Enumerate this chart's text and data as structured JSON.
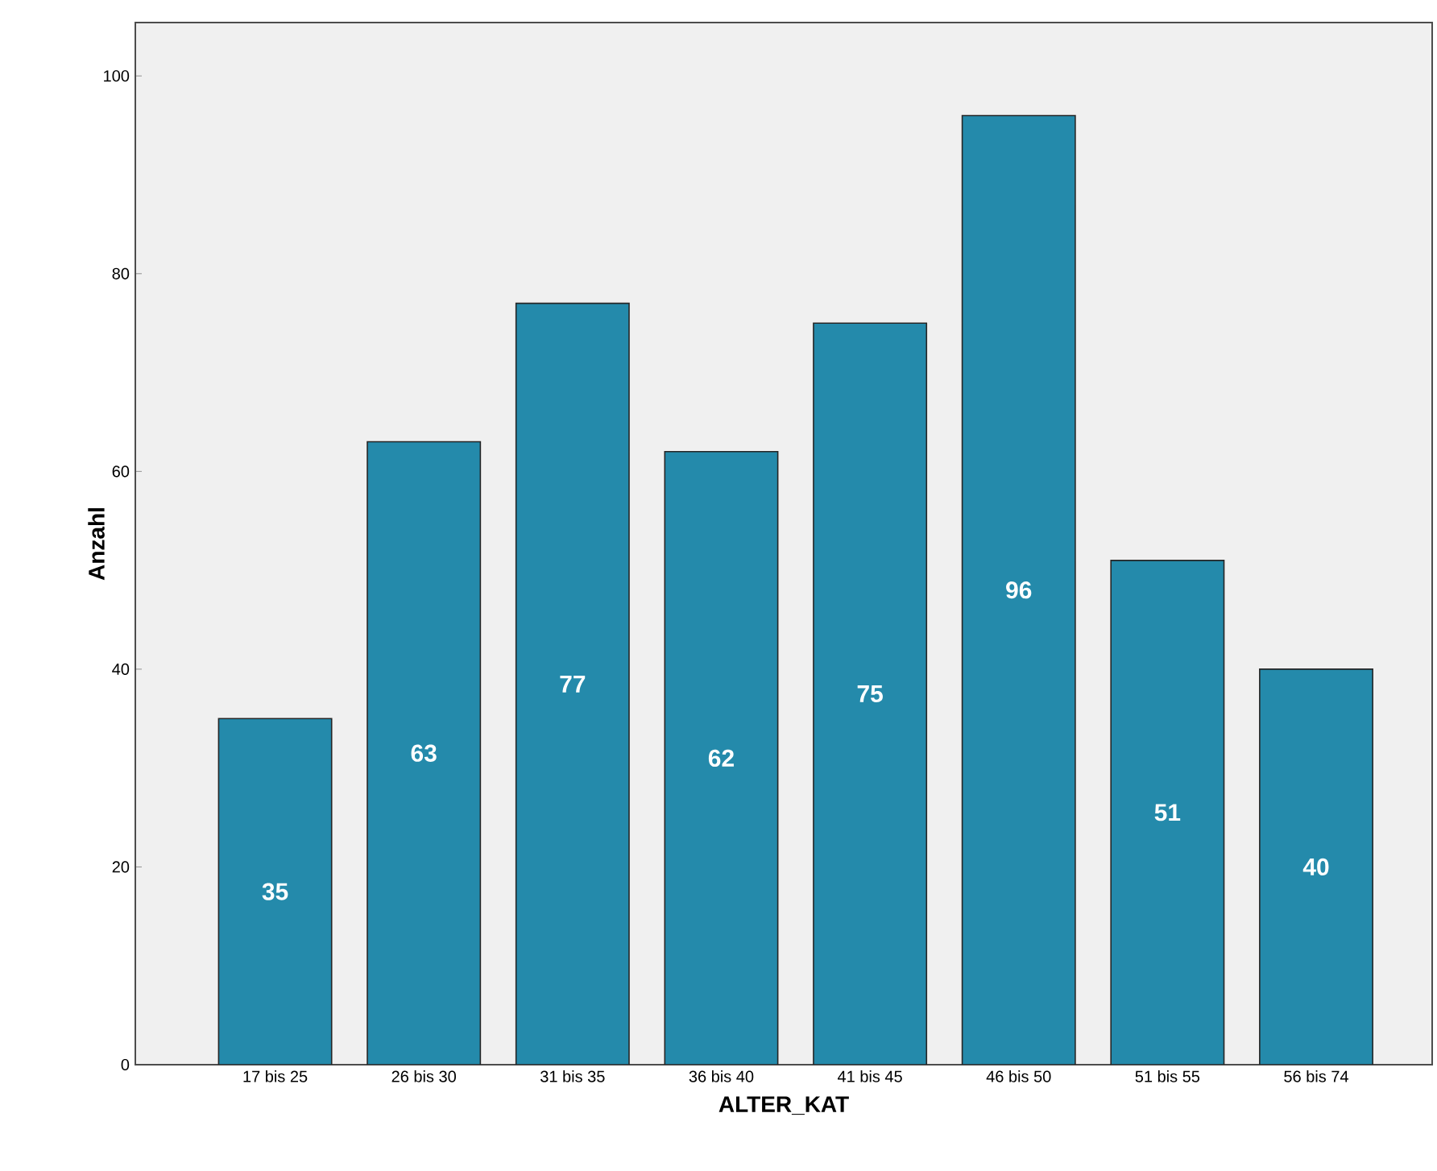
{
  "chart_data": {
    "type": "bar",
    "xlabel": "ALTER_KAT",
    "ylabel": "Anzahl",
    "categories": [
      "17 bis 25",
      "26 bis 30",
      "31 bis 35",
      "36 bis 40",
      "41 bis 45",
      "46 bis 50",
      "51 bis 55",
      "56 bis 74"
    ],
    "values": [
      35,
      63,
      77,
      62,
      75,
      96,
      51,
      40
    ],
    "color": "#248aab",
    "ylim": [
      0,
      105.4
    ],
    "yticks": [
      0,
      20,
      40,
      60,
      80,
      100
    ],
    "data_labels": true,
    "grid": false
  }
}
